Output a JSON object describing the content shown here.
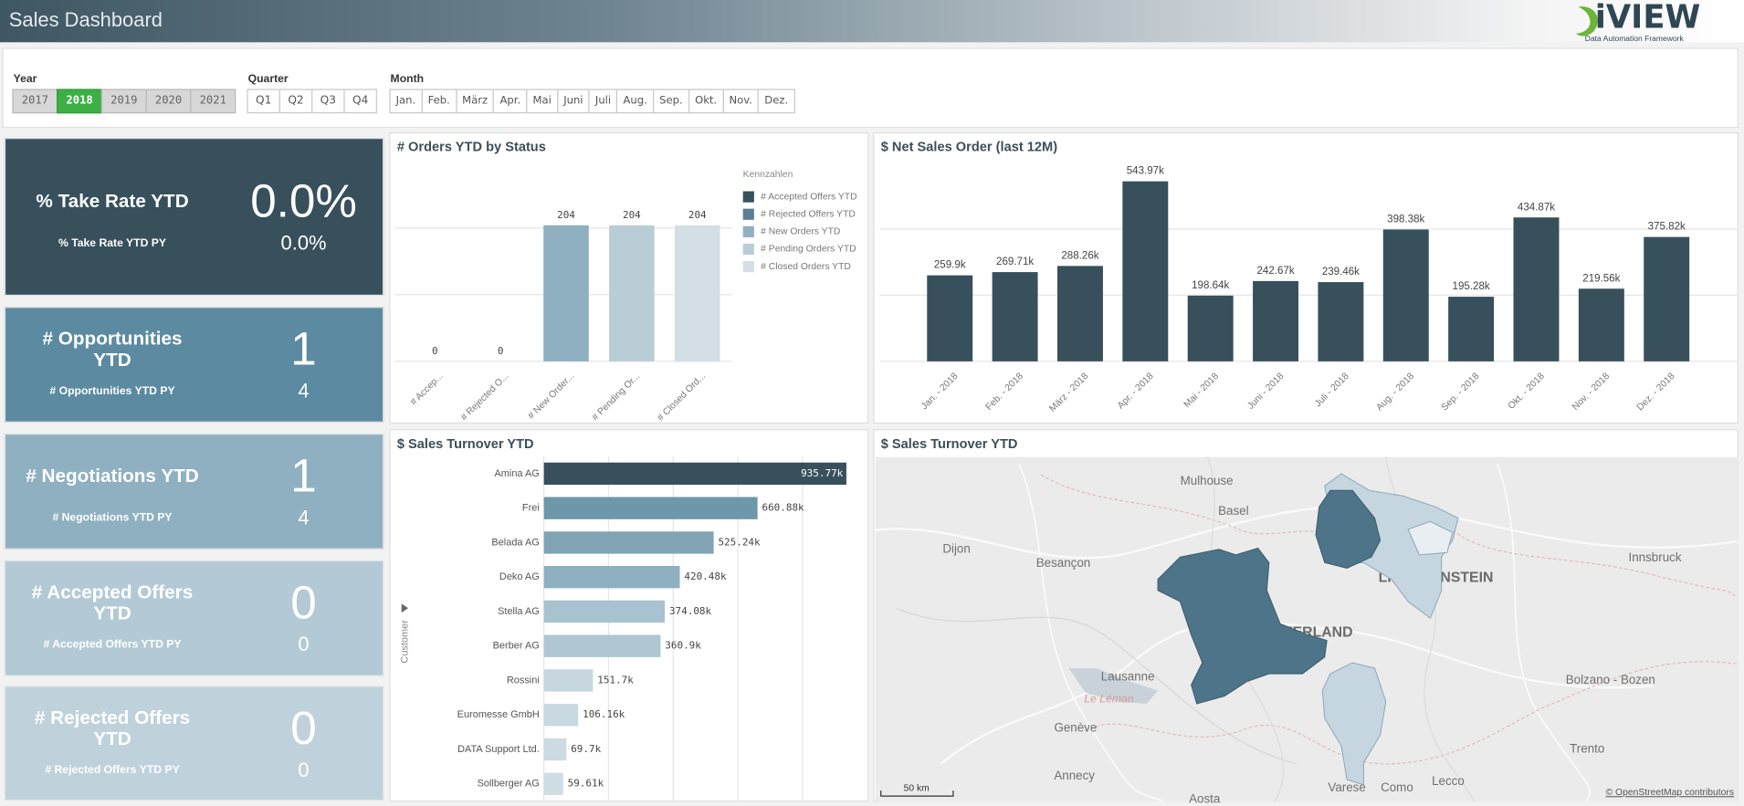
{
  "header": {
    "title": "Sales Dashboard",
    "logo": "iVIEW",
    "logo_subtitle": "Data Automation Framework"
  },
  "filters": [
    {
      "label": "Year",
      "options": [
        "2017",
        "2018",
        "2019",
        "2020",
        "2021"
      ],
      "selected_index": 1
    },
    {
      "label": "Quarter",
      "options": [
        "Q1",
        "Q2",
        "Q3",
        "Q4"
      ]
    },
    {
      "label": "Month",
      "options": [
        "Jan.",
        "Feb.",
        "März",
        "Apr.",
        "Mai",
        "Juni",
        "Juli",
        "Aug.",
        "Sep.",
        "Okt.",
        "Nov.",
        "Dez."
      ]
    }
  ],
  "kpis": [
    {
      "title": "% Take Rate YTD",
      "value": "0.0%",
      "py_label": "% Take Rate YTD PY",
      "py_value": "0.0%",
      "color": "#37505c"
    },
    {
      "title": "# Opportunities YTD",
      "value": 1,
      "py_label": "# Opportunities YTD PY",
      "py_value": 4,
      "color": "#5b8aa1"
    },
    {
      "title": "# Negotiations YTD",
      "value": 1,
      "py_label": "# Negotiations YTD PY",
      "py_value": 4,
      "color": "#8fb0c1"
    },
    {
      "title": "# Accepted Offers YTD",
      "value": 0,
      "py_label": "# Accepted Offers YTD PY",
      "py_value": 0,
      "color": "#b3cad6"
    },
    {
      "title": "# Rejected Offers YTD",
      "value": 0,
      "py_label": "# Rejected Offers YTD PY",
      "py_value": 0,
      "color": "#bfd2dc"
    }
  ],
  "chart_data": [
    {
      "type": "bar",
      "title": "# Orders YTD by Status",
      "categories": [
        "# Accep...",
        "# Rejected O...",
        "# New Order...",
        "# Pending Or...",
        "# Closed Ord..."
      ],
      "values": [
        0,
        0,
        204,
        204,
        204
      ],
      "colors": [
        "#37505c",
        "#5a7f92",
        "#8fb0c0",
        "#b9cdd7",
        "#d3dfe5"
      ],
      "legend_title": "Kennzahlen",
      "legend_labels": [
        "# Accepted Offers YTD",
        "# Rejected Offers YTD",
        "# New Orders YTD",
        "# Pending Orders YTD",
        "# Closed Orders YTD"
      ],
      "ylim": [
        0,
        290
      ],
      "yticks": [
        0,
        100,
        200
      ],
      "grid": true,
      "tick_labels": false
    },
    {
      "type": "bar",
      "title": "$ Net Sales Order (last 12M)",
      "categories": [
        "Jan. - 2018",
        "Feb. - 2018",
        "März - 2018",
        "Apr. - 2018",
        "Mai - 2018",
        "Juni - 2018",
        "Juli - 2018",
        "Aug. - 2018",
        "Sep. - 2018",
        "Okt. - 2018",
        "Nov. - 2018",
        "Dez. - 2018"
      ],
      "values": [
        259900,
        269710,
        288260,
        543970,
        198640,
        242670,
        239460,
        398380,
        195280,
        434870,
        219560,
        375820
      ],
      "value_labels": [
        "259.9k",
        "269.71k",
        "288.26k",
        "543.97k",
        "198.64k",
        "242.67k",
        "239.46k",
        "398.38k",
        "195.28k",
        "434.87k",
        "219.56k",
        "375.82k"
      ],
      "color": "#37505c",
      "ylim": [
        0,
        600000
      ],
      "yticks": [
        0,
        200000,
        400000
      ],
      "grid": true,
      "tick_labels": false
    },
    {
      "type": "barh",
      "title": "$ Sales Turnover YTD",
      "y_label": "Customer",
      "categories": [
        "Amina AG",
        "Frei",
        "Belada AG",
        "Deko AG",
        "Stella AG",
        "Berber AG",
        "Rossini",
        "Euromesse GmbH",
        "DATA Support Ltd.",
        "Sollberger AG"
      ],
      "values": [
        935770,
        660880,
        525240,
        420480,
        374080,
        360900,
        151700,
        106160,
        69700,
        59610
      ],
      "value_labels": [
        "935.77k",
        "660.88k",
        "525.24k",
        "420.48k",
        "374.08k",
        "360.9k",
        "151.7k",
        "106.16k",
        "69.7k",
        "59.61k"
      ],
      "colors": [
        "#37505c",
        "#6f97aa",
        "#80a4b6",
        "#8fb0c0",
        "#a8c2cf",
        "#afc7d3",
        "#c5d6df",
        "#c9d9e1",
        "#ccdbe3",
        "#cfdde5"
      ],
      "xlim": [
        0,
        940000
      ],
      "xticks": [
        0,
        200000,
        400000,
        600000,
        800000
      ],
      "grid": true,
      "tick_labels": false
    }
  ],
  "map": {
    "title": "$ Sales Turnover YTD",
    "labels": [
      "Mulhouse",
      "Basel",
      "Dijon",
      "Besançon",
      "LIECHTENSTEIN",
      "SWITZERLAND",
      "Lausanne",
      "Le Léman",
      "Genève",
      "Annecy",
      "Aosta",
      "Varese",
      "Como",
      "Lecco",
      "Trento",
      "Bolzano - Bozen",
      "Innsbruck"
    ],
    "scale": "50 km",
    "attribution": "© OpenStreetMap contributors"
  }
}
